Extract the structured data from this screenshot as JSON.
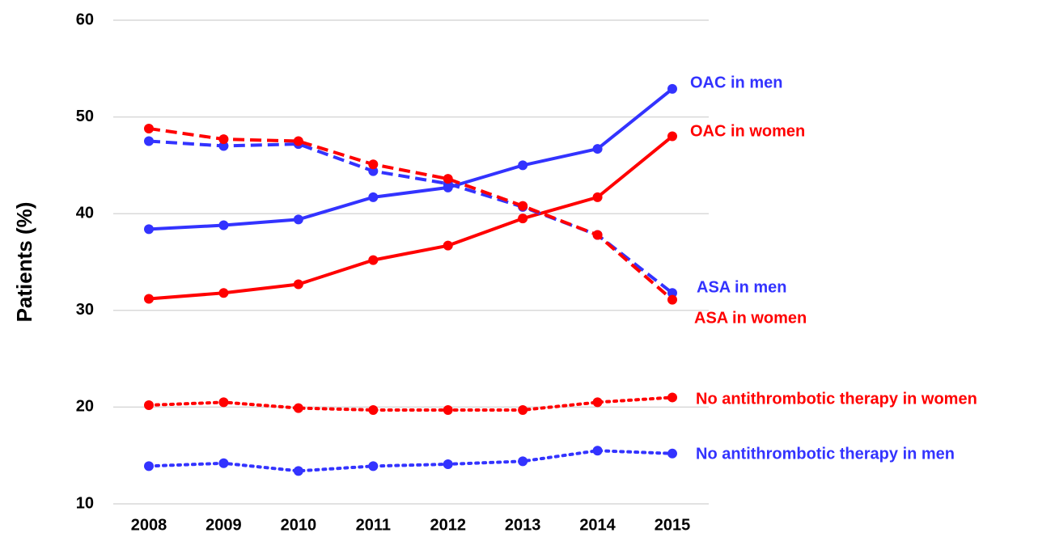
{
  "chart_data": {
    "type": "line",
    "y_label": "Patients (%)",
    "categories": [
      "2008",
      "2009",
      "2010",
      "2011",
      "2012",
      "2013",
      "2014",
      "2015"
    ],
    "ylim": [
      10,
      60
    ],
    "yticks": [
      10,
      20,
      30,
      40,
      50,
      60
    ],
    "grid": true,
    "series": [
      {
        "name": "OAC in men",
        "color": "#3333ff",
        "line_style": "solid",
        "values": [
          38.4,
          38.8,
          39.4,
          41.7,
          42.7,
          45.0,
          46.7,
          52.9
        ]
      },
      {
        "name": "OAC in women",
        "color": "#ff0000",
        "line_style": "solid",
        "values": [
          31.2,
          31.8,
          32.7,
          35.2,
          36.7,
          39.5,
          41.7,
          48.0
        ]
      },
      {
        "name": "ASA in men",
        "color": "#3333ff",
        "line_style": "dashed",
        "values": [
          47.5,
          47.0,
          47.2,
          44.4,
          43.1,
          40.7,
          37.8,
          31.8
        ]
      },
      {
        "name": "ASA in women",
        "color": "#ff0000",
        "line_style": "dashed",
        "values": [
          48.8,
          47.7,
          47.5,
          45.1,
          43.6,
          40.8,
          37.8,
          31.1
        ]
      },
      {
        "name": "No antithrombotic therapy in women",
        "color": "#ff0000",
        "line_style": "dotted",
        "values": [
          20.2,
          20.5,
          19.9,
          19.7,
          19.7,
          19.7,
          20.5,
          21.0
        ]
      },
      {
        "name": "No antithrombotic therapy in men",
        "color": "#3333ff",
        "line_style": "dotted",
        "values": [
          13.9,
          14.2,
          13.4,
          13.9,
          14.1,
          14.4,
          15.5,
          15.2
        ]
      }
    ]
  }
}
